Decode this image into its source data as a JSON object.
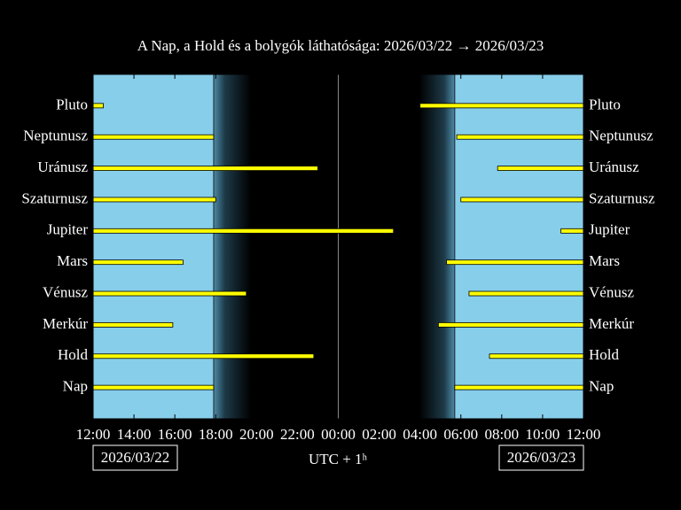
{
  "chart_data": {
    "type": "visibility",
    "title": "A Nap, a Hold és a bolygók láthatósága: 2026/03/22 → 2026/03/23",
    "xlabel": "UTC + 1ʰ",
    "dates": [
      "2026/03/22",
      "2026/03/23"
    ],
    "xlim": [
      12,
      36
    ],
    "xticks": [
      {
        "value": 12,
        "label": "12:00"
      },
      {
        "value": 14,
        "label": "14:00"
      },
      {
        "value": 16,
        "label": "16:00"
      },
      {
        "value": 18,
        "label": "18:00"
      },
      {
        "value": 20,
        "label": "20:00"
      },
      {
        "value": 22,
        "label": "22:00"
      },
      {
        "value": 24,
        "label": "00:00"
      },
      {
        "value": 26,
        "label": "02:00"
      },
      {
        "value": 28,
        "label": "04:00"
      },
      {
        "value": 30,
        "label": "06:00"
      },
      {
        "value": 32,
        "label": "08:00"
      },
      {
        "value": 34,
        "label": "10:00"
      },
      {
        "value": 36,
        "label": "12:00"
      }
    ],
    "color": "#ffff00",
    "bars": [
      {
        "name": "Pluto",
        "segments": [
          [
            12,
            12.5
          ],
          [
            28.0,
            36
          ]
        ]
      },
      {
        "name": "Neptunusz",
        "segments": [
          [
            12,
            17.9
          ],
          [
            29.8,
            36
          ]
        ]
      },
      {
        "name": "Uránusz",
        "segments": [
          [
            12,
            23.0
          ],
          [
            31.8,
            36
          ]
        ]
      },
      {
        "name": "Szaturnusz",
        "segments": [
          [
            12,
            18.0
          ],
          [
            30.0,
            36
          ]
        ]
      },
      {
        "name": "Jupiter",
        "segments": [
          [
            12,
            26.7
          ],
          [
            34.9,
            36
          ]
        ]
      },
      {
        "name": "Mars",
        "segments": [
          [
            12,
            16.4
          ],
          [
            29.3,
            36
          ]
        ]
      },
      {
        "name": "Vénusz",
        "segments": [
          [
            12,
            19.5
          ],
          [
            30.4,
            36
          ]
        ]
      },
      {
        "name": "Merkúr",
        "segments": [
          [
            12,
            15.9
          ],
          [
            28.9,
            36
          ]
        ]
      },
      {
        "name": "Hold",
        "segments": [
          [
            12,
            22.8
          ],
          [
            31.4,
            36
          ]
        ]
      },
      {
        "name": "Nap",
        "segments": [
          [
            12,
            17.9
          ],
          [
            29.7,
            36
          ]
        ]
      }
    ]
  }
}
